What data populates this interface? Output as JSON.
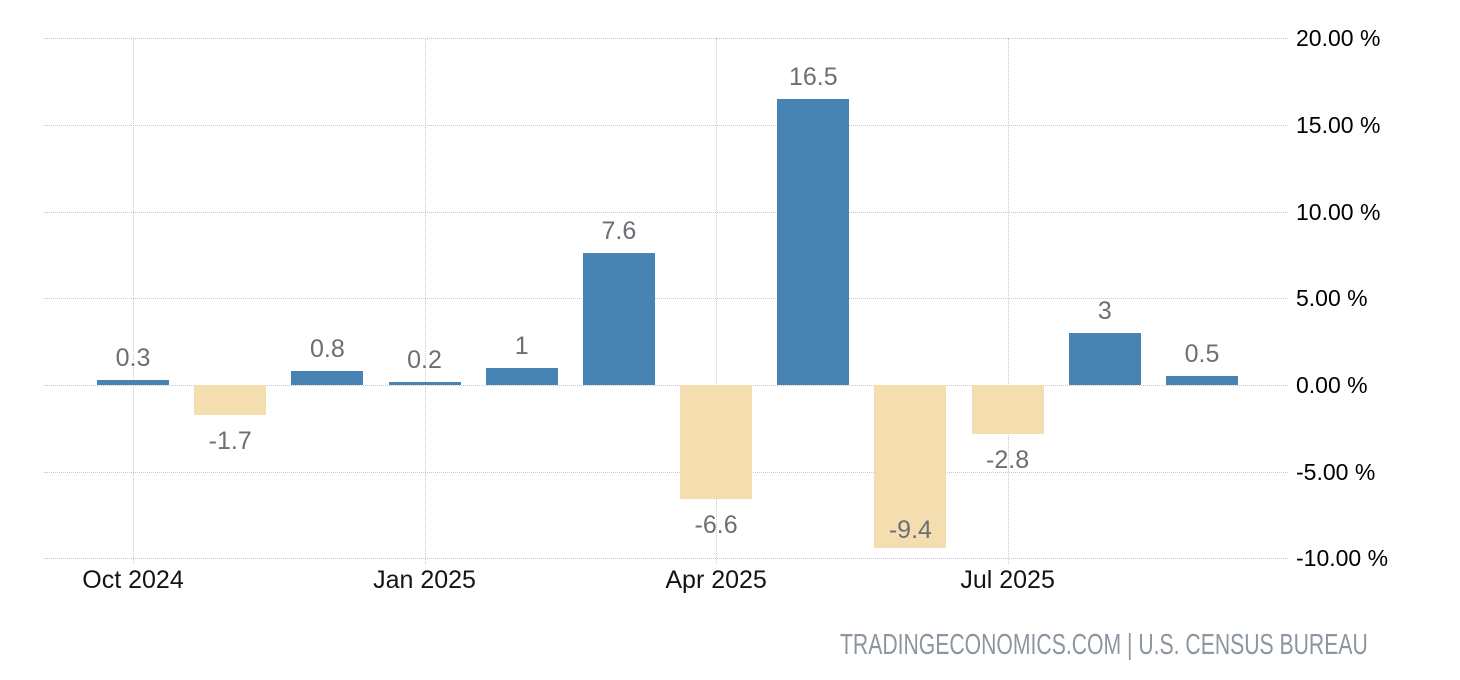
{
  "chart_data": {
    "type": "bar",
    "title": "",
    "unit": "%",
    "categories": [
      "Oct 2024",
      "Nov 2024",
      "Dec 2024",
      "Jan 2025",
      "Feb 2025",
      "Mar 2025",
      "Apr 2025",
      "May 2025",
      "Jun 2025",
      "Jul 2025",
      "Aug 2025",
      "Sep 2025"
    ],
    "values": [
      0.3,
      -1.7,
      0.8,
      0.2,
      1,
      7.6,
      -6.6,
      16.5,
      -9.4,
      -2.8,
      3,
      0.5
    ],
    "data_labels": [
      "0.3",
      "-1.7",
      "0.8",
      "0.2",
      "1",
      "7.6",
      "-6.6",
      "16.5",
      "-9.4",
      "-2.8",
      "3",
      "0.5"
    ],
    "x_tick_labels": [
      "Oct 2024",
      "Jan 2025",
      "Apr 2025",
      "Jul 2025"
    ],
    "x_tick_month_indices": [
      0,
      3,
      6,
      9
    ],
    "y_ticks": [
      20,
      15,
      10,
      5,
      0,
      -5,
      -10
    ],
    "y_tick_labels": [
      "20.00 %",
      "15.00 %",
      "10.00 %",
      "5.00 %",
      "0.00 %",
      "-5.00 %",
      "-10.00 %"
    ],
    "ylim": [
      -10,
      20
    ],
    "grid": true,
    "legend": "none",
    "positive_color": "#4784b4",
    "negative_color": "#f4deb0",
    "data_label_color": "#6b6f75",
    "x_label_color": "#141414",
    "y_label_color": "#000000",
    "gridline_color": "#c9c9c9"
  },
  "footer": {
    "source_text": "TRADINGECONOMICS.COM | U.S. CENSUS BUREAU"
  }
}
